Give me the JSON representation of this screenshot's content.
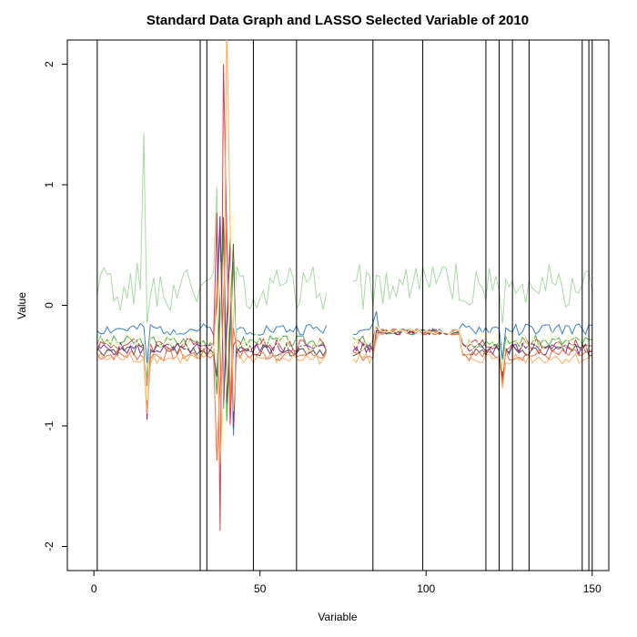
{
  "chart_data": {
    "type": "line",
    "title": "Standard Data Graph and LASSO Selected Variable of 2010",
    "xlabel": "Variable",
    "ylabel": "Value",
    "xlim": [
      -8,
      155
    ],
    "ylim": [
      -2.2,
      2.2
    ],
    "x_ticks": [
      0,
      50,
      100,
      150
    ],
    "y_ticks": [
      -2,
      -1,
      0,
      1,
      2
    ],
    "grid": false,
    "legend": "none",
    "gap": [
      70,
      78
    ],
    "selected_variables": [
      1,
      32,
      34,
      48,
      61,
      84,
      99,
      118,
      122,
      126,
      131,
      147,
      149,
      150
    ],
    "key_points": {
      "spike_up": {
        "x": 39,
        "y": 2.0
      },
      "spike_down": {
        "x": 38,
        "y": -1.87
      },
      "dip": {
        "x": 16,
        "y": -0.95
      },
      "green_peak": {
        "x": 15,
        "y": 1.43
      }
    },
    "series": [
      {
        "color": "#a6dba0",
        "base": 0.1,
        "amp": 0.25,
        "seed": 1,
        "special": "green"
      },
      {
        "color": "#3f7fc1",
        "base": -0.2,
        "amp": 0.05,
        "seed": 2
      },
      {
        "color": "#4daf4a",
        "base": -0.3,
        "amp": 0.05,
        "seed": 3
      },
      {
        "color": "#d53e4f",
        "base": -0.33,
        "amp": 0.06,
        "seed": 4
      },
      {
        "color": "#7b3294",
        "base": -0.36,
        "amp": 0.05,
        "seed": 5
      },
      {
        "color": "#555555",
        "base": -0.37,
        "amp": 0.05,
        "seed": 6
      },
      {
        "color": "#f46d43",
        "base": -0.41,
        "amp": 0.05,
        "seed": 7
      },
      {
        "color": "#fdae61",
        "base": -0.44,
        "amp": 0.05,
        "seed": 8
      },
      {
        "color": "#ffffbf",
        "base": -0.3,
        "amp": 0.08,
        "seed": 9
      }
    ]
  }
}
